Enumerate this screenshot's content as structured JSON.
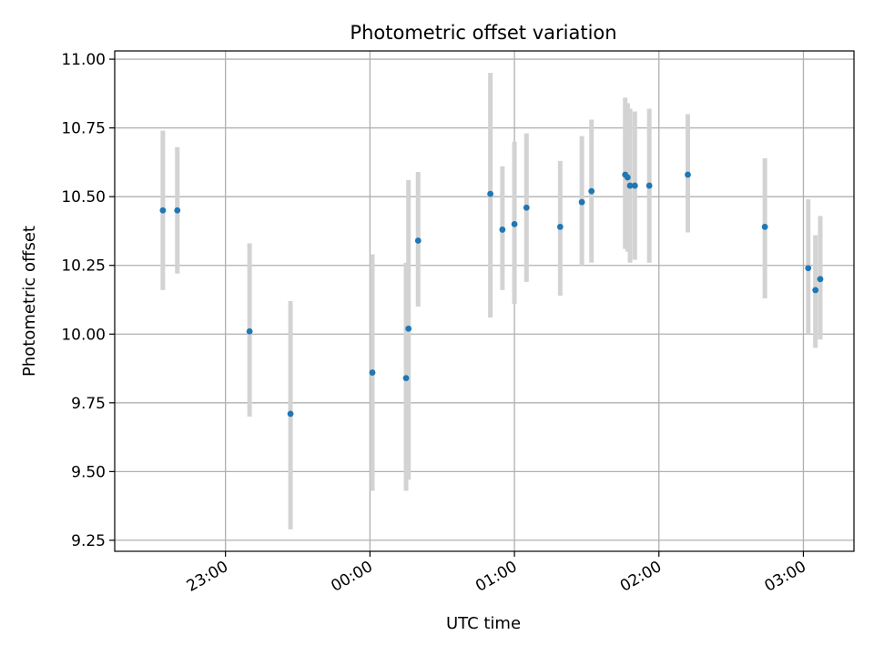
{
  "chart_data": {
    "type": "scatter",
    "title": "Photometric offset variation",
    "xlabel": "UTC time",
    "ylabel": "Photometric offset",
    "grid": true,
    "xlim": [
      "22:14",
      "03:21"
    ],
    "ylim": [
      9.21,
      11.03
    ],
    "x_ticks": [
      "23:00",
      "00:00",
      "01:00",
      "02:00",
      "03:00"
    ],
    "y_ticks": [
      "9.25",
      "9.50",
      "9.75",
      "10.00",
      "10.25",
      "10.50",
      "10.75",
      "11.00"
    ],
    "colors": {
      "point": "#1f77b4",
      "errorbar": "#d3d3d3",
      "grid": "#b0b0b0"
    },
    "series": [
      {
        "points": [
          {
            "x": "22:34",
            "y": 10.45,
            "ylow": 10.16,
            "yhigh": 10.74
          },
          {
            "x": "22:40",
            "y": 10.45,
            "ylow": 10.22,
            "yhigh": 10.68
          },
          {
            "x": "23:10",
            "y": 10.01,
            "ylow": 9.7,
            "yhigh": 10.33
          },
          {
            "x": "23:27",
            "y": 9.71,
            "ylow": 9.29,
            "yhigh": 10.12
          },
          {
            "x": "00:01",
            "y": 9.86,
            "ylow": 9.43,
            "yhigh": 10.29
          },
          {
            "x": "00:15",
            "y": 9.84,
            "ylow": 9.43,
            "yhigh": 10.26
          },
          {
            "x": "00:16",
            "y": 10.02,
            "ylow": 9.47,
            "yhigh": 10.56
          },
          {
            "x": "00:20",
            "y": 10.34,
            "ylow": 10.1,
            "yhigh": 10.59
          },
          {
            "x": "00:50",
            "y": 10.51,
            "ylow": 10.06,
            "yhigh": 10.95
          },
          {
            "x": "00:55",
            "y": 10.38,
            "ylow": 10.16,
            "yhigh": 10.61
          },
          {
            "x": "01:00",
            "y": 10.4,
            "ylow": 10.11,
            "yhigh": 10.7
          },
          {
            "x": "01:05",
            "y": 10.46,
            "ylow": 10.19,
            "yhigh": 10.73
          },
          {
            "x": "01:19",
            "y": 10.39,
            "ylow": 10.14,
            "yhigh": 10.63
          },
          {
            "x": "01:28",
            "y": 10.48,
            "ylow": 10.25,
            "yhigh": 10.72
          },
          {
            "x": "01:32",
            "y": 10.52,
            "ylow": 10.26,
            "yhigh": 10.78
          },
          {
            "x": "01:46",
            "y": 10.58,
            "ylow": 10.31,
            "yhigh": 10.86
          },
          {
            "x": "01:47",
            "y": 10.57,
            "ylow": 10.3,
            "yhigh": 10.84
          },
          {
            "x": "01:48",
            "y": 10.54,
            "ylow": 10.26,
            "yhigh": 10.82
          },
          {
            "x": "01:50",
            "y": 10.54,
            "ylow": 10.27,
            "yhigh": 10.81
          },
          {
            "x": "01:56",
            "y": 10.54,
            "ylow": 10.26,
            "yhigh": 10.82
          },
          {
            "x": "02:12",
            "y": 10.58,
            "ylow": 10.37,
            "yhigh": 10.8
          },
          {
            "x": "02:44",
            "y": 10.39,
            "ylow": 10.13,
            "yhigh": 10.64
          },
          {
            "x": "03:02",
            "y": 10.24,
            "ylow": 10.0,
            "yhigh": 10.49
          },
          {
            "x": "03:05",
            "y": 10.16,
            "ylow": 9.95,
            "yhigh": 10.36
          },
          {
            "x": "03:07",
            "y": 10.2,
            "ylow": 9.98,
            "yhigh": 10.43
          }
        ]
      }
    ]
  }
}
